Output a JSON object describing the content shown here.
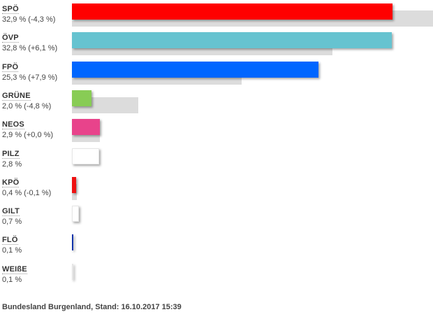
{
  "chart_data": {
    "type": "bar",
    "categories": [
      "SPÖ",
      "ÖVP",
      "FPÖ",
      "GRÜNE",
      "NEOS",
      "PILZ",
      "KPÖ",
      "GILT",
      "FLÖ",
      "WEIßE"
    ],
    "series": [
      {
        "values": [
          32.9,
          32.8,
          25.3,
          2.0,
          2.9,
          2.8,
          0.4,
          0.7,
          0.1,
          0.1
        ],
        "colors": [
          "#ff0000",
          "#66c3d0",
          "#0066ff",
          "#88cc55",
          "#e8438b",
          "#ffffff",
          "#ee1111",
          "#ffffff",
          "#1133aa",
          "#ffffff"
        ]
      },
      {
        "values": [
          37.2,
          26.7,
          17.4,
          6.8,
          2.9,
          null,
          0.5,
          null,
          null,
          null
        ],
        "color": "#dcdcdc"
      }
    ],
    "labels": [
      "32,9 % (-4,3 %)",
      "32,8 % (+6,1 %)",
      "25,3 % (+7,9 %)",
      "2,0 % (-4,8 %)",
      "2,9 % (+0,0 %)",
      "2,8 %",
      "0,4 % (-0,1 %)",
      "0,7 %",
      "0,1 %",
      "0,1 %"
    ]
  },
  "footer": "Bundesland Burgenland, Stand: 16.10.2017 15:39"
}
